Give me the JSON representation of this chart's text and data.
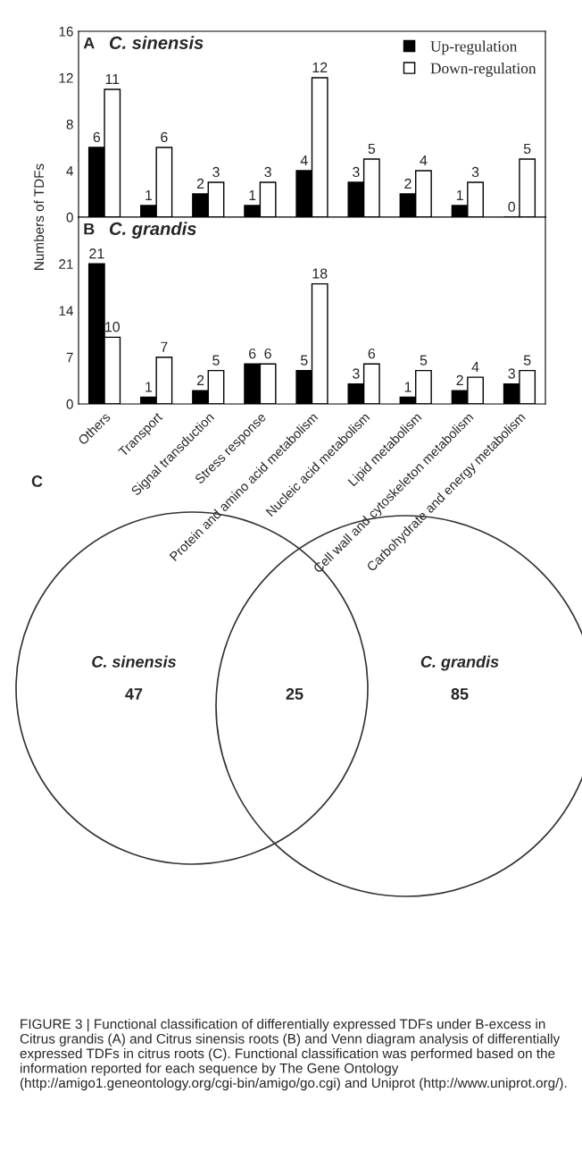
{
  "chart_data": [
    {
      "type": "bar",
      "title": "A",
      "subtitle": "C. sinensis",
      "ylabel": "Numbers of TDFs",
      "categories": [
        "Others",
        "Transport",
        "Signal transduction",
        "Stress response",
        "Protein and amino acid metabolism",
        "Nucleic acid metabolism",
        "Lipid metabolism",
        "Cell wall and cytoskeleton metabolism",
        "Carbohydrate and energy metabolism"
      ],
      "series": [
        {
          "name": "Up-regulation",
          "color": "#000000",
          "values": [
            6,
            1,
            2,
            1,
            4,
            3,
            2,
            1,
            0
          ]
        },
        {
          "name": "Down-regulation",
          "color": "#ffffff",
          "values": [
            11,
            6,
            3,
            3,
            12,
            5,
            4,
            3,
            5
          ]
        }
      ],
      "ylim": [
        0,
        16
      ],
      "yticks": [
        0,
        4,
        8,
        12,
        16
      ],
      "data_labels": true,
      "legend": "top right",
      "grid": false,
      "tick_labels": "y"
    },
    {
      "type": "bar",
      "title": "B",
      "subtitle": "C. grandis",
      "series": [
        {
          "color": "#000000",
          "values": [
            21,
            1,
            2,
            6,
            5,
            3,
            1,
            2,
            3
          ]
        },
        {
          "color": "#ffffff",
          "values": [
            10,
            7,
            5,
            6,
            18,
            6,
            5,
            4,
            5
          ]
        }
      ],
      "ylim": [
        0,
        28
      ],
      "yticks": [
        0,
        7,
        14,
        21
      ],
      "data_labels": true,
      "grid": false
    },
    {
      "type": "other",
      "title": "C",
      "categories": [
        "C. sinensis",
        null,
        "C. grandis"
      ],
      "values": [
        47,
        25,
        85
      ],
      "data_labels": true,
      "annotations": [
        "FIGURE 3 | Functional classification of differentially expressed TDFs under B-excess in Citrus grandis (A) and Citrus sinensis roots (B) and Venn diagram analysis of differentially expressed TDFs in citrus roots (C). Functional classification was performed based on the information reported for each sequence by The Gene Ontology (http://amigo1.geneontology.org/cgi-bin/amigo/go.cgi) and Uniprot (http://www.uniprot.org/)."
      ]
    }
  ]
}
